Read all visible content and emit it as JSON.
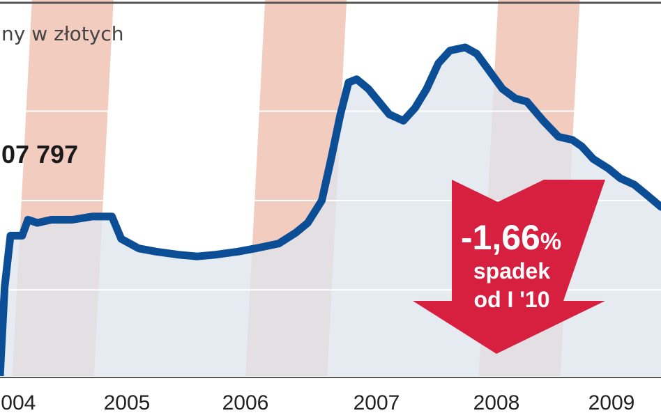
{
  "subtitle": "ny w złotych",
  "value_label": "07 797",
  "colors": {
    "line": "#0b4e96",
    "area": "#dde4ee",
    "stripe": "#f2cdbf",
    "grid": "#ffffff",
    "arrow": "#d7203f",
    "frame": "#555555"
  },
  "annotation": {
    "percent_number": "-1,66",
    "percent_sign": "%",
    "line1": "spadek",
    "line2": "od I '10"
  },
  "chart_data": {
    "type": "line",
    "title": "",
    "subtitle": "ny w złotych",
    "xlabel": "",
    "ylabel": "",
    "x_tick_labels": [
      "2004",
      "2005",
      "2006",
      "2007",
      "2008",
      "2009"
    ],
    "xlim": [
      2003.96,
      2009.63
    ],
    "grid": true,
    "shaded_years": [
      2004,
      2006,
      2008
    ],
    "series": [
      {
        "x": [
          2003.96,
          2004.0,
          2004.05,
          2004.15,
          2004.2,
          2004.28,
          2004.4,
          2004.58,
          2004.75,
          2004.85,
          2004.92,
          2005.0,
          2005.15,
          2005.3,
          2005.5,
          2005.65,
          2005.8,
          2006.0,
          2006.15,
          2006.35,
          2006.5,
          2006.6,
          2006.72,
          2006.8,
          2006.88,
          2006.95,
          2007.02,
          2007.12,
          2007.3,
          2007.42,
          2007.52,
          2007.62,
          2007.72,
          2007.82,
          2007.95,
          2008.05,
          2008.15,
          2008.27,
          2008.38,
          2008.48,
          2008.62,
          2008.75,
          2008.87,
          2008.95,
          2009.05,
          2009.18,
          2009.28,
          2009.4,
          2009.5,
          2009.63
        ],
        "y": [
          0,
          0.28,
          0.44,
          0.44,
          0.49,
          0.48,
          0.49,
          0.49,
          0.5,
          0.5,
          0.5,
          0.43,
          0.4,
          0.39,
          0.38,
          0.375,
          0.38,
          0.39,
          0.4,
          0.415,
          0.45,
          0.48,
          0.55,
          0.68,
          0.82,
          0.92,
          0.93,
          0.9,
          0.82,
          0.8,
          0.84,
          0.9,
          0.98,
          1.02,
          1.03,
          1.01,
          0.96,
          0.9,
          0.87,
          0.86,
          0.8,
          0.75,
          0.74,
          0.72,
          0.68,
          0.65,
          0.62,
          0.6,
          0.57,
          0.53
        ]
      }
    ]
  }
}
